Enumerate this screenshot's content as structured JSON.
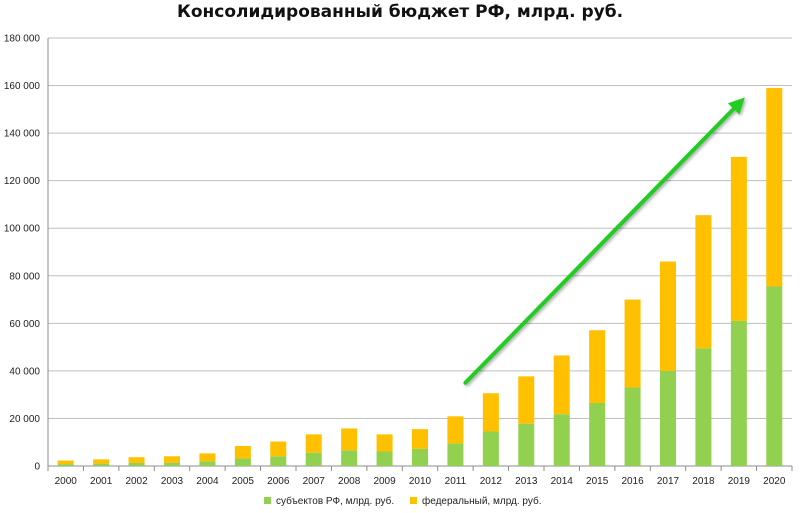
{
  "chart_data": {
    "type": "bar",
    "stacked": true,
    "title": "Консолидированный бюджет РФ, млрд. руб.",
    "categories": [
      "2000",
      "2001",
      "2002",
      "2003",
      "2004",
      "2005",
      "2006",
      "2007",
      "2008",
      "2009",
      "2010",
      "2011",
      "2012",
      "2013",
      "2014",
      "2015",
      "2016",
      "2017",
      "2018",
      "2019",
      "2020"
    ],
    "series": [
      {
        "name": "субъектов РФ, млрд. руб.",
        "color": "#92D050",
        "values": [
          800,
          1000,
          1300,
          1400,
          2000,
          3200,
          4100,
          5600,
          6600,
          6100,
          7200,
          9500,
          14500,
          17800,
          21800,
          26500,
          33000,
          40000,
          49500,
          61000,
          75500
        ]
      },
      {
        "name": "федеральный, млрд. руб.",
        "color": "#FFC000",
        "values": [
          1500,
          1800,
          2400,
          2700,
          3300,
          5200,
          6200,
          7700,
          9200,
          7200,
          8300,
          11400,
          16100,
          19900,
          24700,
          30600,
          37000,
          46000,
          56000,
          69000,
          83500
        ]
      }
    ],
    "ylim": [
      0,
      180000
    ],
    "yticks": [
      0,
      20000,
      40000,
      60000,
      80000,
      100000,
      120000,
      140000,
      160000,
      180000
    ],
    "ytick_labels": [
      "0",
      "20 000",
      "40 000",
      "60 000",
      "80 000",
      "100 000",
      "120 000",
      "140 000",
      "160 000",
      "180 000"
    ],
    "grid": true,
    "legend_position": "bottom",
    "annotation": {
      "type": "arrow",
      "color": "#22CC22",
      "from": {
        "x": "2011",
        "y": 35000
      },
      "to": {
        "x": "2019",
        "y": 155000
      }
    }
  }
}
